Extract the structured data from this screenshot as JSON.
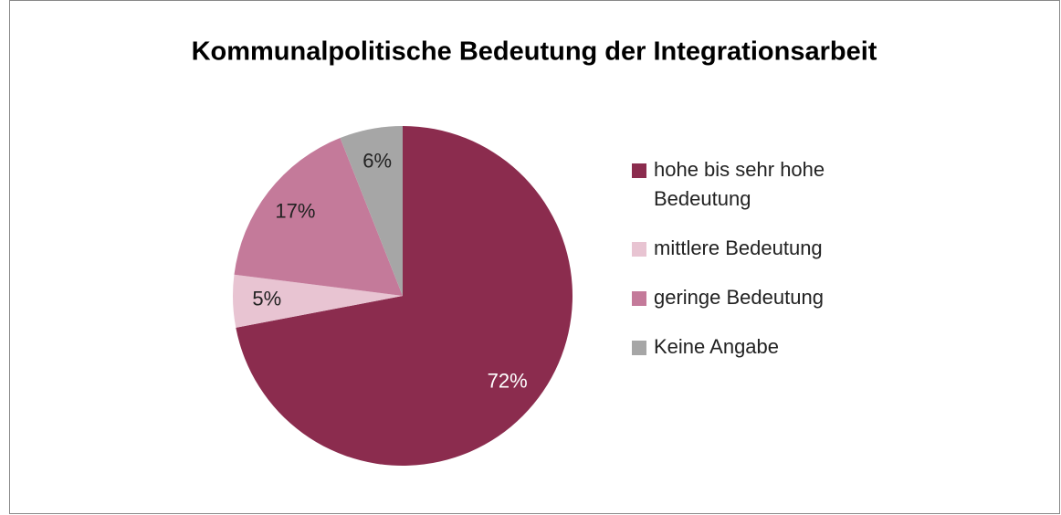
{
  "chart_data": {
    "type": "pie",
    "title": "Kommunalpolitische Bedeutung der Integrationsarbeit",
    "categories": [
      "hohe bis sehr hohe Bedeutung",
      "mittlere Bedeutung",
      "geringe Bedeutung",
      "Keine Angabe"
    ],
    "values": [
      72,
      5,
      17,
      6
    ],
    "value_labels": [
      "72%",
      "5%",
      "17%",
      "6%"
    ],
    "colors": [
      "#8b2c4e",
      "#e8c4d2",
      "#c47a9a",
      "#a6a6a6"
    ],
    "legend": "right"
  }
}
